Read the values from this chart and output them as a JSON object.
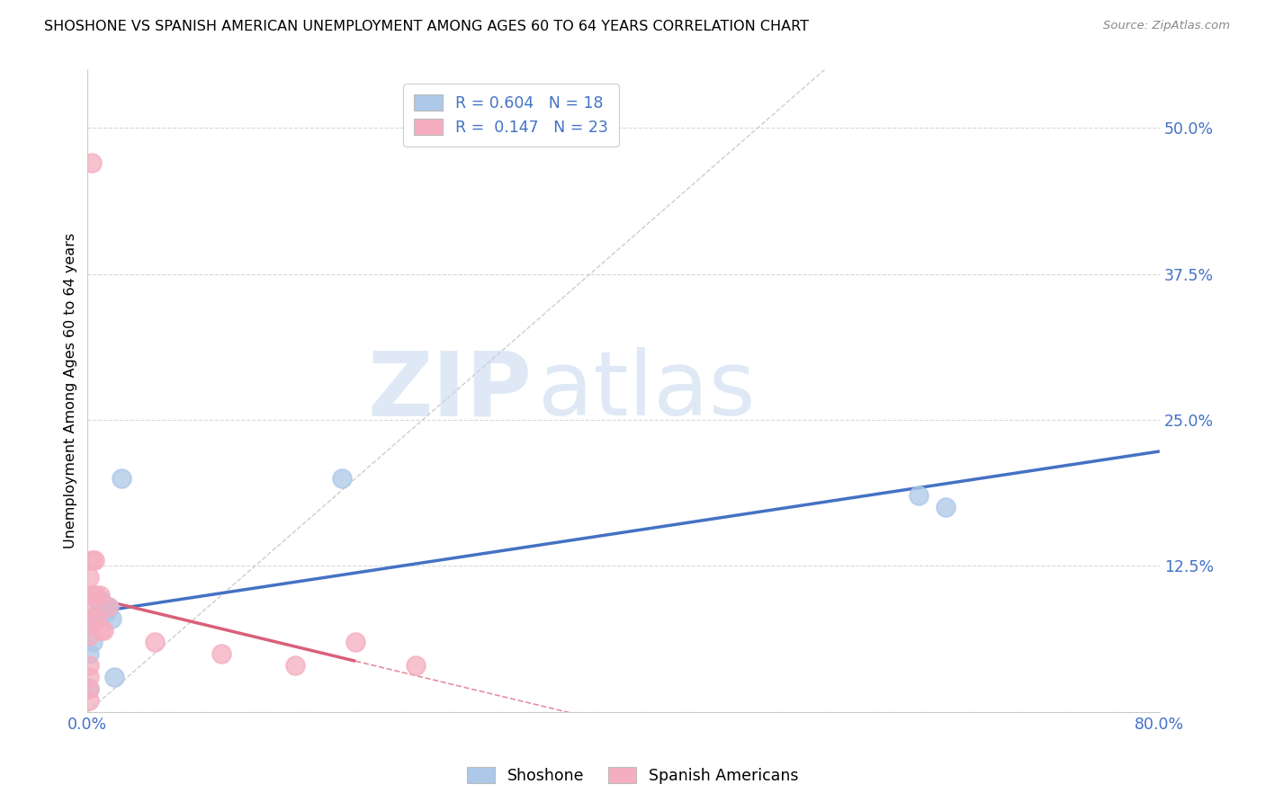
{
  "title": "SHOSHONE VS SPANISH AMERICAN UNEMPLOYMENT AMONG AGES 60 TO 64 YEARS CORRELATION CHART",
  "source": "Source: ZipAtlas.com",
  "ylabel": "Unemployment Among Ages 60 to 64 years",
  "xlim": [
    0.0,
    0.8
  ],
  "ylim": [
    -0.01,
    0.55
  ],
  "ylim_plot": [
    0.0,
    0.55
  ],
  "xticks": [
    0.0,
    0.1,
    0.2,
    0.3,
    0.4,
    0.5,
    0.6,
    0.7,
    0.8
  ],
  "yticks": [
    0.0,
    0.125,
    0.25,
    0.375,
    0.5
  ],
  "ytick_labels": [
    "",
    "12.5%",
    "25.0%",
    "37.5%",
    "50.0%"
  ],
  "xtick_labels": [
    "0.0%",
    "",
    "",
    "",
    "",
    "",
    "",
    "",
    "80.0%"
  ],
  "shoshone_color": "#adc8e8",
  "spanish_color": "#f5aec0",
  "shoshone_line_color": "#4472c4",
  "spanish_line_color": "#d9607a",
  "ref_line_color": "#c8c8c8",
  "R_shoshone": 0.604,
  "N_shoshone": 18,
  "R_spanish": 0.147,
  "N_spanish": 23,
  "shoshone_x": [
    0.001,
    0.001,
    0.002,
    0.003,
    0.004,
    0.006,
    0.008,
    0.008,
    0.01,
    0.012,
    0.014,
    0.016,
    0.018,
    0.02,
    0.025,
    0.19,
    0.62,
    0.64
  ],
  "shoshone_y": [
    0.05,
    0.02,
    0.08,
    0.075,
    0.06,
    0.1,
    0.095,
    0.085,
    0.095,
    0.09,
    0.085,
    0.09,
    0.08,
    0.03,
    0.2,
    0.2,
    0.185,
    0.175
  ],
  "spanish_x": [
    0.001,
    0.001,
    0.001,
    0.001,
    0.001,
    0.001,
    0.001,
    0.003,
    0.004,
    0.004,
    0.005,
    0.006,
    0.007,
    0.009,
    0.01,
    0.012,
    0.015,
    0.05,
    0.1,
    0.155,
    0.2,
    0.245,
    0.003
  ],
  "spanish_y": [
    0.115,
    0.09,
    0.065,
    0.04,
    0.03,
    0.02,
    0.01,
    0.13,
    0.1,
    0.08,
    0.13,
    0.1,
    0.08,
    0.1,
    0.07,
    0.07,
    0.09,
    0.06,
    0.05,
    0.04,
    0.06,
    0.04,
    0.47
  ],
  "watermark_zip": "ZIP",
  "watermark_atlas": "atlas",
  "legend_label_shoshone": "Shoshone",
  "legend_label_spanish": "Spanish Americans",
  "tick_color": "#4472c4",
  "grid_color": "#d8d8d8",
  "axis_color": "#cccccc"
}
